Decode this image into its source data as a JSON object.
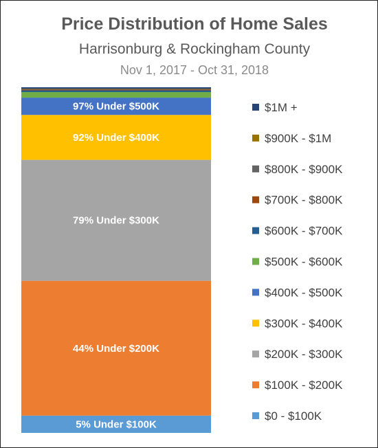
{
  "chart_data": {
    "type": "bar",
    "title": "Price Distribution of Home Sales",
    "subtitle": "Harrisonburg & Rockingham County",
    "date_range": "Nov 1, 2017 - Oct 31, 2018",
    "stacked": true,
    "ylim": [
      0,
      100
    ],
    "legend_position": "right",
    "series": [
      {
        "name": "$0 - $100K",
        "value": 5,
        "color": "#5B9BD5",
        "label": "5% Under $100K"
      },
      {
        "name": "$100K - $200K",
        "value": 39,
        "color": "#ED7D31",
        "label": "44% Under $200K"
      },
      {
        "name": "$200K - $300K",
        "value": 35,
        "color": "#A5A5A5",
        "label": "79% Under $300K"
      },
      {
        "name": "$300K - $400K",
        "value": 13,
        "color": "#FFC000",
        "label": "92% Under $400K"
      },
      {
        "name": "$400K - $500K",
        "value": 5,
        "color": "#4472C4",
        "label": "97% Under $500K"
      },
      {
        "name": "$500K - $600K",
        "value": 1.6,
        "color": "#70AD47",
        "label": ""
      },
      {
        "name": "$600K - $700K",
        "value": 0.5,
        "color": "#255E91",
        "label": ""
      },
      {
        "name": "$700K - $800K",
        "value": 0.2,
        "color": "#9E480E",
        "label": ""
      },
      {
        "name": "$800K - $900K",
        "value": 0.2,
        "color": "#636363",
        "label": ""
      },
      {
        "name": "$900K - $1M",
        "value": 0.1,
        "color": "#997300",
        "label": ""
      },
      {
        "name": "$1M +",
        "value": 0.4,
        "color": "#264478",
        "label": ""
      }
    ]
  }
}
